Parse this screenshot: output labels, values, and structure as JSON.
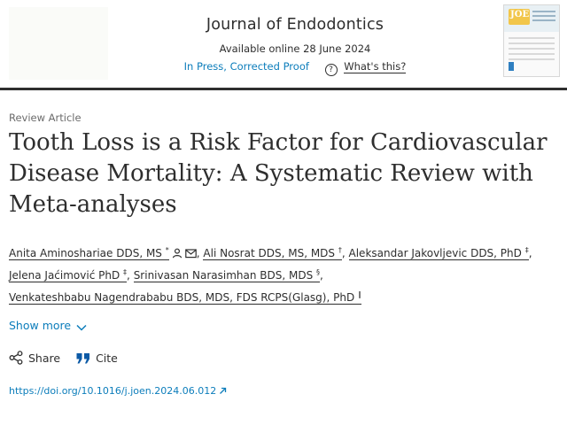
{
  "header": {
    "journal_title": "Journal of Endodontics",
    "available": "Available online 28 June 2024",
    "status": "In Press, Corrected Proof",
    "help_label": "?",
    "whats_this": "What's this?",
    "cover_mark": "JOE"
  },
  "article": {
    "type": "Review Article",
    "title": "Tooth Loss is a Risk Factor for Cardiovascular Disease Mortality: A Systematic Review with Meta-analyses"
  },
  "authors": [
    {
      "name": "Anita Aminoshariae DDS, MS",
      "sup": "*"
    },
    {
      "name": "Ali Nosrat DDS, MS, MDS",
      "sup": "†"
    },
    {
      "name": "Aleksandar Jakovljevic DDS, PhD",
      "sup": "‡"
    },
    {
      "name": "Jelena Jaćimović PhD",
      "sup": "‡"
    },
    {
      "name": "Srinivasan Narasimhan BDS, MDS",
      "sup": "§"
    },
    {
      "name": "Venkateshbabu Nagendrababu BDS, MDS, FDS RCPS(Glasg), PhD",
      "sup": "∥"
    }
  ],
  "separator": ",",
  "actions": {
    "show_more": "Show more",
    "share": "Share",
    "cite": "Cite"
  },
  "doi": "https://doi.org/10.1016/j.joen.2024.06.012",
  "colors": {
    "link": "#0c7dbb",
    "text": "#2e2e2e",
    "muted": "#6b6b6b"
  }
}
